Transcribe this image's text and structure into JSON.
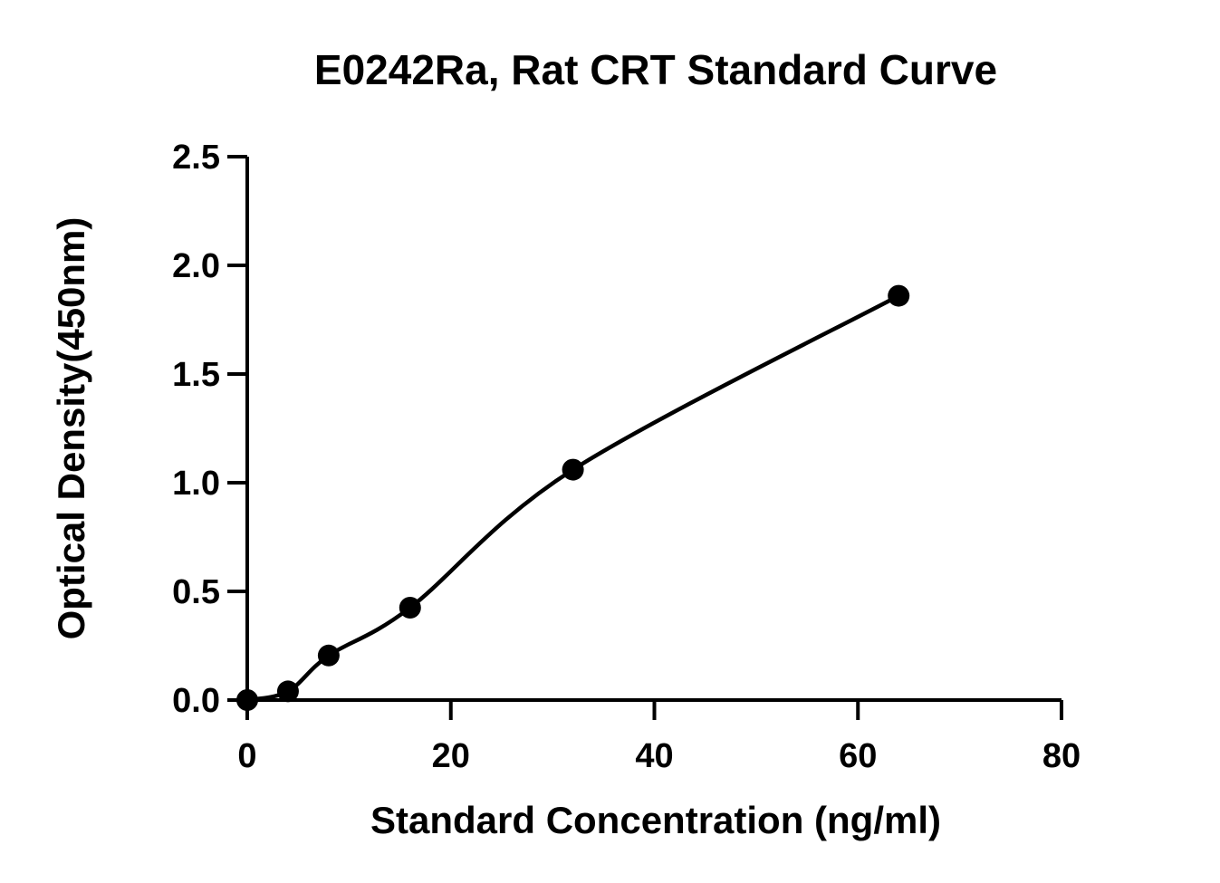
{
  "chart_data": {
    "type": "scatter",
    "title": "E0242Ra, Rat CRT Standard Curve",
    "xlabel": "Standard Concentration (ng/ml)",
    "ylabel": "Optical Density(450nm)",
    "xlim": [
      0,
      80
    ],
    "ylim": [
      0,
      2.5
    ],
    "x_ticks": [
      0,
      20,
      40,
      60,
      80
    ],
    "x_tick_labels": [
      "0",
      "20",
      "40",
      "60",
      "80"
    ],
    "y_ticks": [
      0,
      0.5,
      1.0,
      1.5,
      2.0,
      2.5
    ],
    "y_tick_labels": [
      "0.0",
      "0.5",
      "1.0",
      "1.5",
      "2.0",
      "2.5"
    ],
    "grid": false,
    "legend": false,
    "series": [
      {
        "x": [
          0,
          4,
          8,
          16,
          32,
          64
        ],
        "y": [
          0.0,
          0.04,
          0.205,
          0.425,
          1.06,
          1.86
        ],
        "marker": "filled-circle",
        "fitted_curve": "smooth"
      }
    ],
    "colors": {
      "marks": "#000000",
      "background": "#ffffff"
    }
  }
}
